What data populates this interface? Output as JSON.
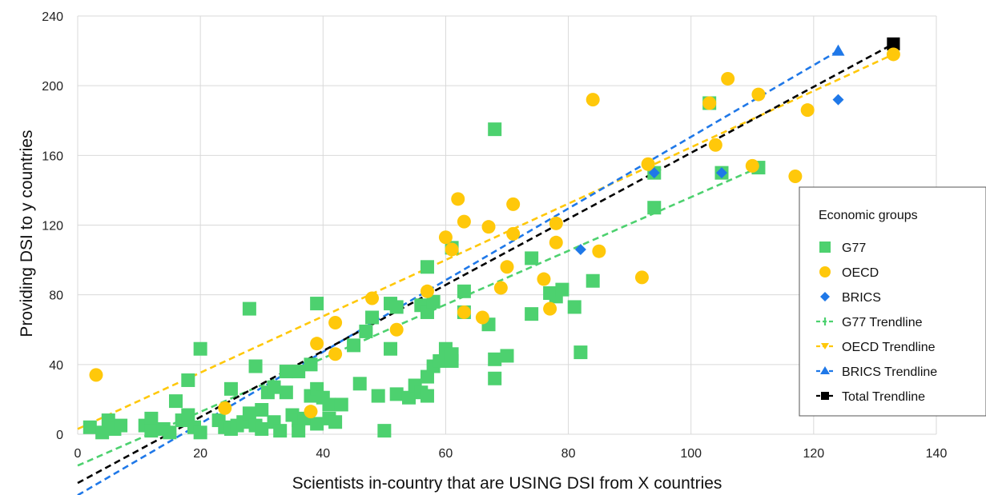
{
  "chart_data": {
    "type": "scatter",
    "xlabel": "Scientists in-country that are USING DSI from X countries",
    "ylabel": "Providing DSI to y countries",
    "xlim": [
      0,
      140
    ],
    "ylim": [
      0,
      240
    ],
    "x_ticks": [
      "0",
      "20",
      "40",
      "60",
      "80",
      "100",
      "120",
      "140"
    ],
    "y_ticks": [
      "0",
      "40",
      "80",
      "120",
      "160",
      "200",
      "240"
    ],
    "grid": true,
    "legend_position": "right",
    "legend_title": "Economic groups",
    "series": [
      {
        "name": "G77",
        "marker": "square",
        "color": "#4dd16f",
        "points": [
          [
            2,
            4
          ],
          [
            4,
            1
          ],
          [
            5,
            8
          ],
          [
            6,
            3
          ],
          [
            7,
            5
          ],
          [
            11,
            5
          ],
          [
            12,
            9
          ],
          [
            12,
            2
          ],
          [
            14,
            3
          ],
          [
            15,
            1
          ],
          [
            16,
            19
          ],
          [
            17,
            8
          ],
          [
            18,
            31
          ],
          [
            18,
            11
          ],
          [
            19,
            4
          ],
          [
            20,
            1
          ],
          [
            20,
            49
          ],
          [
            23,
            8
          ],
          [
            24,
            4
          ],
          [
            25,
            26
          ],
          [
            25,
            3
          ],
          [
            26,
            5
          ],
          [
            27,
            7
          ],
          [
            28,
            12
          ],
          [
            28,
            72
          ],
          [
            29,
            39
          ],
          [
            29,
            5
          ],
          [
            30,
            14
          ],
          [
            30,
            3
          ],
          [
            31,
            24
          ],
          [
            32,
            27
          ],
          [
            32,
            7
          ],
          [
            33,
            2
          ],
          [
            34,
            36
          ],
          [
            34,
            24
          ],
          [
            35,
            11
          ],
          [
            36,
            36
          ],
          [
            36,
            8
          ],
          [
            36,
            2
          ],
          [
            37,
            9
          ],
          [
            38,
            40
          ],
          [
            38,
            22
          ],
          [
            39,
            75
          ],
          [
            39,
            26
          ],
          [
            39,
            6
          ],
          [
            40,
            21
          ],
          [
            41,
            17
          ],
          [
            41,
            9
          ],
          [
            42,
            7
          ],
          [
            43,
            17
          ],
          [
            45,
            51
          ],
          [
            46,
            29
          ],
          [
            47,
            59
          ],
          [
            48,
            67
          ],
          [
            49,
            22
          ],
          [
            50,
            2
          ],
          [
            51,
            75
          ],
          [
            51,
            49
          ],
          [
            52,
            73
          ],
          [
            52,
            23
          ],
          [
            54,
            21
          ],
          [
            55,
            28
          ],
          [
            56,
            74
          ],
          [
            56,
            24
          ],
          [
            57,
            96
          ],
          [
            57,
            70
          ],
          [
            57,
            22
          ],
          [
            57,
            33
          ],
          [
            58,
            76
          ],
          [
            58,
            39
          ],
          [
            59,
            42
          ],
          [
            60,
            49
          ],
          [
            61,
            107
          ],
          [
            61,
            46
          ],
          [
            61,
            42
          ],
          [
            63,
            82
          ],
          [
            63,
            70
          ],
          [
            67,
            63
          ],
          [
            68,
            175
          ],
          [
            68,
            43
          ],
          [
            68,
            32
          ],
          [
            70,
            45
          ],
          [
            74,
            101
          ],
          [
            74,
            69
          ],
          [
            77,
            81
          ],
          [
            78,
            79
          ],
          [
            79,
            83
          ],
          [
            81,
            73
          ],
          [
            82,
            47
          ],
          [
            84,
            88
          ],
          [
            94,
            130
          ],
          [
            94,
            150
          ],
          [
            103,
            190
          ],
          [
            105,
            150
          ],
          [
            111,
            153
          ]
        ]
      },
      {
        "name": "OECD",
        "marker": "circle",
        "color": "#ffc80a",
        "points": [
          [
            3,
            34
          ],
          [
            24,
            15
          ],
          [
            38,
            13
          ],
          [
            39,
            52
          ],
          [
            42,
            64
          ],
          [
            42,
            46
          ],
          [
            48,
            78
          ],
          [
            52,
            60
          ],
          [
            57,
            82
          ],
          [
            60,
            113
          ],
          [
            61,
            106
          ],
          [
            62,
            135
          ],
          [
            63,
            122
          ],
          [
            63,
            70
          ],
          [
            66,
            67
          ],
          [
            67,
            119
          ],
          [
            69,
            84
          ],
          [
            70,
            96
          ],
          [
            71,
            115
          ],
          [
            71,
            132
          ],
          [
            76,
            89
          ],
          [
            77,
            72
          ],
          [
            78,
            121
          ],
          [
            78,
            110
          ],
          [
            84,
            192
          ],
          [
            85,
            105
          ],
          [
            92,
            90
          ],
          [
            93,
            155
          ],
          [
            103,
            190
          ],
          [
            104,
            166
          ],
          [
            106,
            204
          ],
          [
            110,
            154
          ],
          [
            111,
            195
          ],
          [
            117,
            148
          ],
          [
            119,
            186
          ],
          [
            133,
            218
          ]
        ]
      },
      {
        "name": "BRICS",
        "marker": "diamond",
        "color": "#1f78e8",
        "points": [
          [
            82,
            106
          ],
          [
            94,
            150
          ],
          [
            105,
            150
          ],
          [
            124,
            192
          ]
        ]
      }
    ],
    "trendlines": [
      {
        "name": "G77 Trendline",
        "color": "#4dd16f",
        "marker": "plus",
        "x": [
          0,
          111
        ],
        "y": [
          -18,
          153
        ]
      },
      {
        "name": "OECD Trendline",
        "color": "#ffc80a",
        "marker": "arrow",
        "x": [
          0,
          133
        ],
        "y": [
          3,
          218
        ]
      },
      {
        "name": "BRICS Trendline",
        "color": "#1f78e8",
        "marker": "triangle",
        "x": [
          0,
          124
        ],
        "y": [
          -35,
          220
        ]
      },
      {
        "name": "Total Trendline",
        "color": "#000000",
        "marker": "square",
        "x": [
          0,
          133
        ],
        "y": [
          -28,
          224
        ]
      }
    ]
  }
}
